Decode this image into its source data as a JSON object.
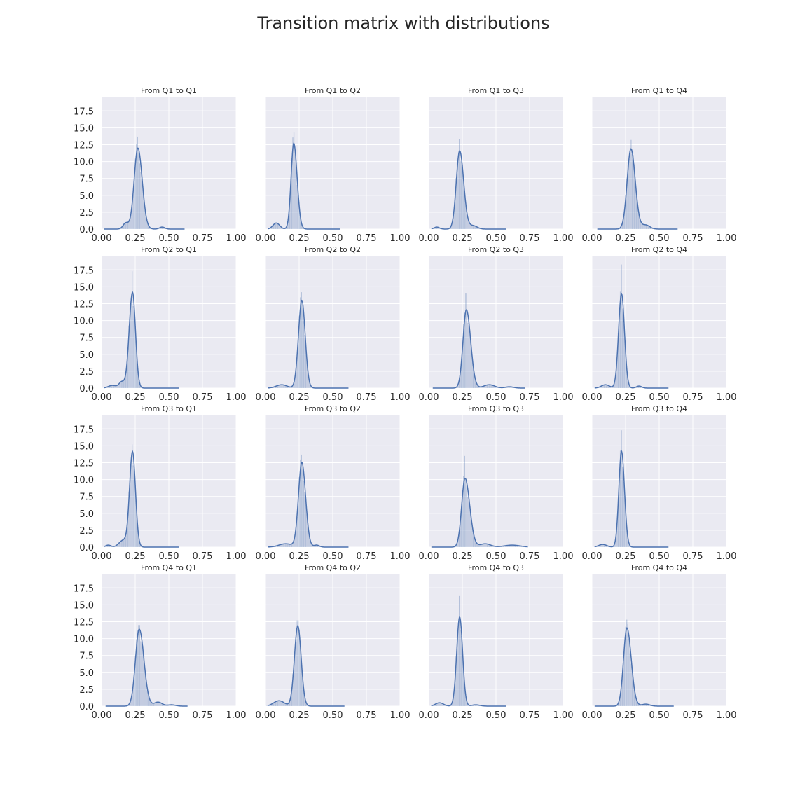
{
  "title": "Transition matrix with distributions",
  "colors": {
    "background": "#ffffff",
    "panel": "#eaeaf2",
    "grid": "#ffffff",
    "line": "#4c72b0",
    "bars": "#4c72b0",
    "text": "#262626"
  },
  "chart_data": [
    {
      "type": "histogram+kde",
      "title": "From Q1 to Q1",
      "xlim": [
        0,
        1
      ],
      "ylim": [
        0,
        19.5
      ],
      "grid": true,
      "xticks": [
        "0.00",
        "0.25",
        "0.50",
        "0.75",
        "1.00"
      ],
      "yticks": [
        "0.0",
        "2.5",
        "5.0",
        "7.5",
        "10.0",
        "12.5",
        "15.0",
        "17.5"
      ],
      "peak_x": 0.27,
      "peak_y": 12.0,
      "sd_left": 0.028,
      "sd_right": 0.032,
      "bumps": [
        [
          0.18,
          0.9,
          0.02
        ],
        [
          0.45,
          0.3,
          0.02
        ]
      ],
      "tallest_bar": 13.7
    },
    {
      "type": "histogram+kde",
      "title": "From Q1 to Q2",
      "xlim": [
        0,
        1
      ],
      "ylim": [
        0,
        19.5
      ],
      "grid": true,
      "xticks": [
        "0.00",
        "0.25",
        "0.50",
        "0.75",
        "1.00"
      ],
      "yticks": [],
      "peak_x": 0.21,
      "peak_y": 12.7,
      "sd_left": 0.02,
      "sd_right": 0.025,
      "bumps": [
        [
          0.08,
          0.9,
          0.025
        ]
      ],
      "tallest_bar": 14.3
    },
    {
      "type": "histogram+kde",
      "title": "From Q1 to Q3",
      "xlim": [
        0,
        1
      ],
      "ylim": [
        0,
        19.5
      ],
      "grid": true,
      "xticks": [
        "0.00",
        "0.25",
        "0.50",
        "0.75",
        "1.00"
      ],
      "yticks": [],
      "peak_x": 0.23,
      "peak_y": 11.6,
      "sd_left": 0.025,
      "sd_right": 0.03,
      "bumps": [
        [
          0.06,
          0.3,
          0.02
        ],
        [
          0.33,
          0.5,
          0.03
        ]
      ],
      "tallest_bar": 13.3
    },
    {
      "type": "histogram+kde",
      "title": "From Q1 to Q4",
      "xlim": [
        0,
        1
      ],
      "ylim": [
        0,
        19.5
      ],
      "grid": true,
      "xticks": [
        "0.00",
        "0.25",
        "0.50",
        "0.75",
        "1.00"
      ],
      "yticks": [],
      "peak_x": 0.29,
      "peak_y": 11.9,
      "sd_left": 0.028,
      "sd_right": 0.032,
      "bumps": [
        [
          0.4,
          0.6,
          0.03
        ]
      ],
      "tallest_bar": 13.2
    },
    {
      "type": "histogram+kde",
      "title": "From Q2 to Q1",
      "xlim": [
        0,
        1
      ],
      "ylim": [
        0,
        19.5
      ],
      "grid": true,
      "xticks": [
        "0.00",
        "0.25",
        "0.50",
        "0.75",
        "1.00"
      ],
      "yticks": [
        "0.0",
        "2.5",
        "5.0",
        "7.5",
        "10.0",
        "12.5",
        "15.0",
        "17.5"
      ],
      "peak_x": 0.23,
      "peak_y": 14.2,
      "sd_left": 0.025,
      "sd_right": 0.022,
      "bumps": [
        [
          0.08,
          0.4,
          0.03
        ],
        [
          0.15,
          0.9,
          0.02
        ]
      ],
      "tallest_bar": 17.3
    },
    {
      "type": "histogram+kde",
      "title": "From Q2 to Q2",
      "xlim": [
        0,
        1
      ],
      "ylim": [
        0,
        19.5
      ],
      "grid": true,
      "xticks": [
        "0.00",
        "0.25",
        "0.50",
        "0.75",
        "1.00"
      ],
      "yticks": [],
      "peak_x": 0.27,
      "peak_y": 13.0,
      "sd_left": 0.025,
      "sd_right": 0.025,
      "bumps": [
        [
          0.12,
          0.5,
          0.04
        ]
      ],
      "tallest_bar": 14.2
    },
    {
      "type": "histogram+kde",
      "title": "From Q2 to Q3",
      "xlim": [
        0,
        1
      ],
      "ylim": [
        0,
        19.5
      ],
      "grid": true,
      "xticks": [
        "0.00",
        "0.25",
        "0.50",
        "0.75",
        "1.00"
      ],
      "yticks": [],
      "peak_x": 0.28,
      "peak_y": 11.6,
      "sd_left": 0.025,
      "sd_right": 0.032,
      "bumps": [
        [
          0.45,
          0.5,
          0.04
        ],
        [
          0.6,
          0.2,
          0.03
        ]
      ],
      "tallest_bar": 14.1
    },
    {
      "type": "histogram+kde",
      "title": "From Q2 to Q4",
      "xlim": [
        0,
        1
      ],
      "ylim": [
        0,
        19.5
      ],
      "grid": true,
      "xticks": [
        "0.00",
        "0.25",
        "0.50",
        "0.75",
        "1.00"
      ],
      "yticks": [],
      "peak_x": 0.22,
      "peak_y": 14.0,
      "sd_left": 0.022,
      "sd_right": 0.022,
      "bumps": [
        [
          0.1,
          0.5,
          0.03
        ],
        [
          0.35,
          0.3,
          0.02
        ]
      ],
      "tallest_bar": 18.3
    },
    {
      "type": "histogram+kde",
      "title": "From Q3 to Q1",
      "xlim": [
        0,
        1
      ],
      "ylim": [
        0,
        19.5
      ],
      "grid": true,
      "xticks": [
        "0.00",
        "0.25",
        "0.50",
        "0.75",
        "1.00"
      ],
      "yticks": [
        "0.0",
        "2.5",
        "5.0",
        "7.5",
        "10.0",
        "12.5",
        "15.0",
        "17.5"
      ],
      "peak_x": 0.23,
      "peak_y": 14.1,
      "sd_left": 0.022,
      "sd_right": 0.022,
      "bumps": [
        [
          0.05,
          0.3,
          0.02
        ],
        [
          0.16,
          1.0,
          0.03
        ]
      ],
      "tallest_bar": 15.2
    },
    {
      "type": "histogram+kde",
      "title": "From Q3 to Q2",
      "xlim": [
        0,
        1
      ],
      "ylim": [
        0,
        19.5
      ],
      "grid": true,
      "xticks": [
        "0.00",
        "0.25",
        "0.50",
        "0.75",
        "1.00"
      ],
      "yticks": [],
      "peak_x": 0.27,
      "peak_y": 12.5,
      "sd_left": 0.025,
      "sd_right": 0.028,
      "bumps": [
        [
          0.15,
          0.5,
          0.05
        ],
        [
          0.38,
          0.3,
          0.02
        ]
      ],
      "tallest_bar": 13.7
    },
    {
      "type": "histogram+kde",
      "title": "From Q3 to Q3",
      "xlim": [
        0,
        1
      ],
      "ylim": [
        0,
        19.5
      ],
      "grid": true,
      "xticks": [
        "0.00",
        "0.25",
        "0.50",
        "0.75",
        "1.00"
      ],
      "yticks": [],
      "peak_x": 0.27,
      "peak_y": 10.2,
      "sd_left": 0.025,
      "sd_right": 0.035,
      "bumps": [
        [
          0.42,
          0.5,
          0.04
        ],
        [
          0.62,
          0.3,
          0.06
        ]
      ],
      "tallest_bar": 13.5
    },
    {
      "type": "histogram+kde",
      "title": "From Q3 to Q4",
      "xlim": [
        0,
        1
      ],
      "ylim": [
        0,
        19.5
      ],
      "grid": true,
      "xticks": [
        "0.00",
        "0.25",
        "0.50",
        "0.75",
        "1.00"
      ],
      "yticks": [],
      "peak_x": 0.22,
      "peak_y": 14.2,
      "sd_left": 0.02,
      "sd_right": 0.022,
      "bumps": [
        [
          0.08,
          0.4,
          0.03
        ]
      ],
      "tallest_bar": 17.3
    },
    {
      "type": "histogram+kde",
      "title": "From Q4 to Q1",
      "xlim": [
        0,
        1
      ],
      "ylim": [
        0,
        19.5
      ],
      "grid": true,
      "xticks": [
        "0.00",
        "0.25",
        "0.50",
        "0.75",
        "1.00"
      ],
      "yticks": [
        "0.0",
        "2.5",
        "5.0",
        "7.5",
        "10.0",
        "12.5",
        "15.0",
        "17.5"
      ],
      "peak_x": 0.28,
      "peak_y": 11.4,
      "sd_left": 0.028,
      "sd_right": 0.035,
      "bumps": [
        [
          0.42,
          0.6,
          0.03
        ],
        [
          0.52,
          0.2,
          0.03
        ]
      ],
      "tallest_bar": 12.0
    },
    {
      "type": "histogram+kde",
      "title": "From Q4 to Q2",
      "xlim": [
        0,
        1
      ],
      "ylim": [
        0,
        19.5
      ],
      "grid": true,
      "xticks": [
        "0.00",
        "0.25",
        "0.50",
        "0.75",
        "1.00"
      ],
      "yticks": [],
      "peak_x": 0.24,
      "peak_y": 11.9,
      "sd_left": 0.025,
      "sd_right": 0.025,
      "bumps": [
        [
          0.1,
          0.8,
          0.04
        ]
      ],
      "tallest_bar": 12.7
    },
    {
      "type": "histogram+kde",
      "title": "From Q4 to Q3",
      "xlim": [
        0,
        1
      ],
      "ylim": [
        0,
        19.5
      ],
      "grid": true,
      "xticks": [
        "0.00",
        "0.25",
        "0.50",
        "0.75",
        "1.00"
      ],
      "yticks": [],
      "peak_x": 0.23,
      "peak_y": 13.2,
      "sd_left": 0.022,
      "sd_right": 0.022,
      "bumps": [
        [
          0.08,
          0.5,
          0.03
        ],
        [
          0.35,
          0.2,
          0.03
        ]
      ],
      "tallest_bar": 16.3
    },
    {
      "type": "histogram+kde",
      "title": "From Q4 to Q4",
      "xlim": [
        0,
        1
      ],
      "ylim": [
        0,
        19.5
      ],
      "grid": true,
      "xticks": [
        "0.00",
        "0.25",
        "0.50",
        "0.75",
        "1.00"
      ],
      "yticks": [],
      "peak_x": 0.26,
      "peak_y": 11.6,
      "sd_left": 0.025,
      "sd_right": 0.032,
      "bumps": [
        [
          0.4,
          0.3,
          0.03
        ]
      ],
      "tallest_bar": 12.8
    }
  ]
}
